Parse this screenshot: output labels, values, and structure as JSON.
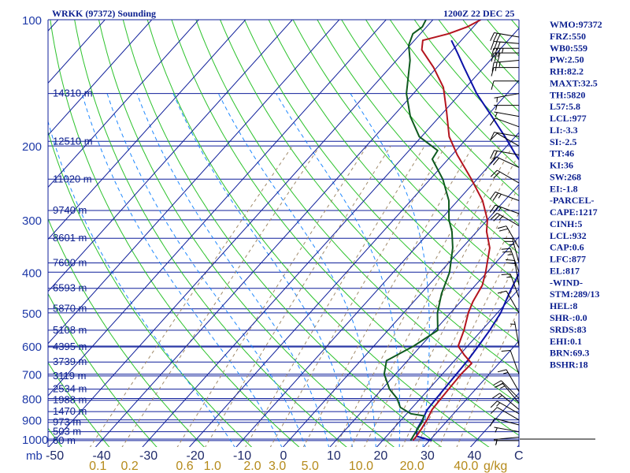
{
  "chart_data": {
    "type": "skew-t log-p sounding",
    "title": "WRKK (97372) Sounding",
    "time": "1200Z 22 DEC 25",
    "pressure_unit": "mb",
    "mixing_ratio_unit": "g/kg",
    "pressure_ticks": [
      "100",
      "200",
      "300",
      "400",
      "500",
      "600",
      "700",
      "800",
      "900",
      "1000"
    ],
    "pressure_tick_values": [
      100,
      200,
      300,
      400,
      500,
      600,
      700,
      800,
      900,
      1000
    ],
    "temperature_ticks": [
      "-50",
      "-40",
      "-30",
      "-20",
      "-10",
      "0",
      "10",
      "20",
      "30",
      "40",
      "C"
    ],
    "temperature_tick_values": [
      -50,
      -40,
      -30,
      -20,
      -10,
      0,
      10,
      20,
      30,
      40
    ],
    "mixing_ratio_ticks": [
      "0.1",
      "0.2",
      "0.6",
      "1.0",
      "2.0",
      "3.0",
      "5.0",
      "10.0",
      "20.0",
      "40.0",
      "g/kg"
    ],
    "mixing_ratio_values": [
      0.1,
      0.2,
      0.6,
      1.0,
      2.0,
      3.0,
      5.0,
      10.0,
      20.0,
      40.0
    ],
    "height_levels": [
      {
        "label": "14310 m",
        "p": 150
      },
      {
        "label": "12510 m",
        "p": 195
      },
      {
        "label": "11020 m",
        "p": 240
      },
      {
        "label": "9740 m",
        "p": 285
      },
      {
        "label": "8601 m",
        "p": 332
      },
      {
        "label": "7600 m",
        "p": 380
      },
      {
        "label": "6593 m",
        "p": 437
      },
      {
        "label": "5870 m",
        "p": 489
      },
      {
        "label": "5108 m",
        "p": 550
      },
      {
        "label": "4395 m",
        "p": 603
      },
      {
        "label": "3739 m",
        "p": 655
      },
      {
        "label": "3119 m",
        "p": 707
      },
      {
        "label": "2534 m",
        "p": 760
      },
      {
        "label": "1988 m",
        "p": 808
      },
      {
        "label": "1470 m",
        "p": 860
      },
      {
        "label": "973 m",
        "p": 912
      },
      {
        "label": "503 m",
        "p": 960
      },
      {
        "label": "60 m",
        "p": 1008
      }
    ],
    "temperature_profile": [
      [
        1008,
        26.5
      ],
      [
        985,
        26.4
      ],
      [
        950,
        26.1
      ],
      [
        900,
        25.5
      ],
      [
        850,
        24.6
      ],
      [
        800,
        24.4
      ],
      [
        750,
        24.2
      ],
      [
        700,
        24.0
      ],
      [
        660,
        24.2
      ],
      [
        630,
        21.0
      ],
      [
        600,
        18.0
      ],
      [
        550,
        16.2
      ],
      [
        500,
        13.8
      ],
      [
        470,
        12.6
      ],
      [
        430,
        11.5
      ],
      [
        400,
        9.7
      ],
      [
        350,
        5.9
      ],
      [
        320,
        2.1
      ],
      [
        300,
        0.0
      ],
      [
        270,
        -4.7
      ],
      [
        240,
        -11.2
      ],
      [
        210,
        -18.9
      ],
      [
        190,
        -24.1
      ],
      [
        165,
        -29.6
      ],
      [
        145,
        -34.8
      ],
      [
        130,
        -40.7
      ],
      [
        118,
        -46.6
      ],
      [
        112,
        -48.2
      ],
      [
        108,
        -44.0
      ],
      [
        104,
        -41.3
      ],
      [
        100,
        -39.8
      ]
    ],
    "dewpoint_profile": [
      [
        1008,
        26.0
      ],
      [
        985,
        25.7
      ],
      [
        950,
        25.3
      ],
      [
        910,
        24.9
      ],
      [
        880,
        24.1
      ],
      [
        870,
        20.9
      ],
      [
        840,
        17.4
      ],
      [
        800,
        15.0
      ],
      [
        760,
        11.6
      ],
      [
        700,
        7.6
      ],
      [
        650,
        5.5
      ],
      [
        600,
        8.5
      ],
      [
        550,
        10.6
      ],
      [
        500,
        7.2
      ],
      [
        450,
        4.4
      ],
      [
        400,
        2.0
      ],
      [
        350,
        -2.0
      ],
      [
        320,
        -5.3
      ],
      [
        300,
        -8.2
      ],
      [
        270,
        -11.9
      ],
      [
        240,
        -17.3
      ],
      [
        215,
        -23.4
      ],
      [
        205,
        -23.9
      ],
      [
        190,
        -30.5
      ],
      [
        170,
        -36.3
      ],
      [
        150,
        -41.5
      ],
      [
        125,
        -47.1
      ],
      [
        115,
        -50.3
      ],
      [
        108,
        -51.6
      ],
      [
        104,
        -50.9
      ],
      [
        100,
        -51.5
      ]
    ],
    "parcel_profile": [
      [
        1008,
        30.5
      ],
      [
        985,
        26.5
      ],
      [
        950,
        25.2
      ],
      [
        900,
        24.5
      ],
      [
        850,
        23.6
      ],
      [
        800,
        23.4
      ],
      [
        750,
        23.2
      ],
      [
        700,
        23.0
      ],
      [
        650,
        22.8
      ],
      [
        600,
        22.3
      ],
      [
        550,
        21.7
      ],
      [
        500,
        20.7
      ],
      [
        450,
        18.8
      ],
      [
        400,
        16.9
      ],
      [
        350,
        14.5
      ],
      [
        320,
        12.5
      ],
      [
        300,
        10.3
      ],
      [
        270,
        7.0
      ],
      [
        240,
        1.8
      ],
      [
        210,
        -6.4
      ],
      [
        190,
        -12.2
      ],
      [
        170,
        -18.9
      ],
      [
        150,
        -26.5
      ],
      [
        130,
        -34.2
      ],
      [
        120,
        -38.4
      ],
      [
        112,
        -42.1
      ]
    ],
    "wind_barbs": [
      {
        "p": 1008,
        "dir": 270,
        "kt": 5
      },
      {
        "p": 990,
        "dir": 265,
        "kt": 5
      },
      {
        "p": 960,
        "dir": 280,
        "kt": 5
      },
      {
        "p": 925,
        "dir": 285,
        "kt": 10
      },
      {
        "p": 900,
        "dir": 300,
        "kt": 10
      },
      {
        "p": 870,
        "dir": 300,
        "kt": 15
      },
      {
        "p": 850,
        "dir": 310,
        "kt": 15
      },
      {
        "p": 820,
        "dir": 320,
        "kt": 15
      },
      {
        "p": 800,
        "dir": 315,
        "kt": 20
      },
      {
        "p": 770,
        "dir": 330,
        "kt": 15
      },
      {
        "p": 700,
        "dir": 340,
        "kt": 10
      },
      {
        "p": 600,
        "dir": 350,
        "kt": 5
      },
      {
        "p": 500,
        "dir": 330,
        "kt": 10
      },
      {
        "p": 460,
        "dir": 340,
        "kt": 15
      },
      {
        "p": 430,
        "dir": 350,
        "kt": 20
      },
      {
        "p": 400,
        "dir": 340,
        "kt": 25
      },
      {
        "p": 380,
        "dir": 345,
        "kt": 25
      },
      {
        "p": 350,
        "dir": 330,
        "kt": 20
      },
      {
        "p": 310,
        "dir": 300,
        "kt": 25
      },
      {
        "p": 290,
        "dir": 290,
        "kt": 25
      },
      {
        "p": 270,
        "dir": 290,
        "kt": 25
      },
      {
        "p": 245,
        "dir": 300,
        "kt": 20
      },
      {
        "p": 225,
        "dir": 295,
        "kt": 20
      },
      {
        "p": 210,
        "dir": 280,
        "kt": 20
      },
      {
        "p": 200,
        "dir": 300,
        "kt": 10
      },
      {
        "p": 190,
        "dir": 280,
        "kt": 10
      },
      {
        "p": 180,
        "dir": 290,
        "kt": 10
      },
      {
        "p": 170,
        "dir": 280,
        "kt": 5
      },
      {
        "p": 160,
        "dir": 270,
        "kt": 5
      },
      {
        "p": 150,
        "dir": 260,
        "kt": 5
      },
      {
        "p": 140,
        "dir": 270,
        "kt": 10
      },
      {
        "p": 130,
        "dir": 270,
        "kt": 10
      },
      {
        "p": 125,
        "dir": 265,
        "kt": 25
      },
      {
        "p": 120,
        "dir": 270,
        "kt": 30
      },
      {
        "p": 117,
        "dir": 270,
        "kt": 35
      },
      {
        "p": 114,
        "dir": 275,
        "kt": 30
      },
      {
        "p": 110,
        "dir": 280,
        "kt": 30
      }
    ],
    "indices": [
      "WMO:97372",
      "FRZ:550",
      "WB0:559",
      "PW:2.50",
      "RH:82.2",
      "MAXT:32.5",
      "TH:5820",
      "L57:5.8",
      "LCL:977",
      "LI:-3.3",
      "SI:-2.5",
      "TT:46",
      "KI:36",
      "SW:268",
      "EI:-1.8",
      "-PARCEL-",
      "CAPE:1217",
      "CINH:5",
      "LCL:932",
      "CAP:0.6",
      "LFC:877",
      "EL:817",
      "-WIND-",
      "STM:289/13",
      "HEL:8",
      "SHR-:0.0",
      "SRDS:83",
      "EHI:0.1",
      "BRN:69.3",
      "BSHR:18"
    ],
    "colors": {
      "isobar": "#0f1f9a",
      "isotherm": "#0f1f9a",
      "dry_adiabat": "#2cc22c",
      "moist_adiabat": "#1e88ff",
      "mixing_ratio": "#a08a6a",
      "temperature": "#b4141e",
      "dewpoint": "#0e5a1e",
      "parcel": "#0c12a8",
      "wind": "#000000",
      "border": "#0f1f9a"
    }
  }
}
